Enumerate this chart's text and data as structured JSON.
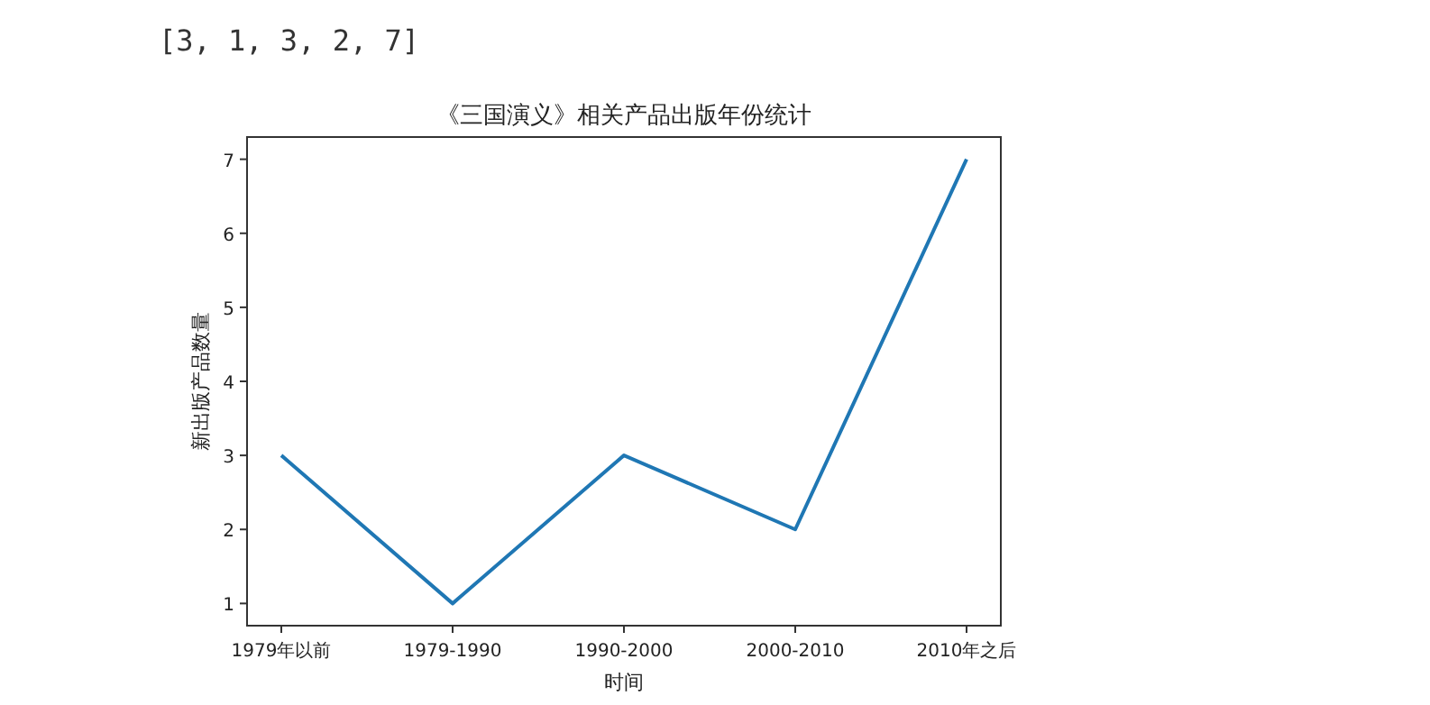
{
  "chart_data": {
    "type": "line",
    "title": "《三国演义》相关产品出版年份统计",
    "xlabel": "时间",
    "ylabel": "新出版产品数量",
    "annotations": [
      "[3, 1, 3, 2, 7]"
    ],
    "categories": [
      "1979年以前",
      "1979-1990",
      "1990-2000",
      "2000-2010",
      "2010年之后"
    ],
    "series": [
      {
        "color": "#1f77b4",
        "values": [
          3,
          1,
          3,
          2,
          7
        ]
      }
    ],
    "ylim": [
      0.7,
      7.3
    ],
    "yticks": [
      1,
      2,
      3,
      4,
      5,
      6,
      7
    ],
    "grid": false,
    "marker": "none",
    "line_style": "solid"
  }
}
